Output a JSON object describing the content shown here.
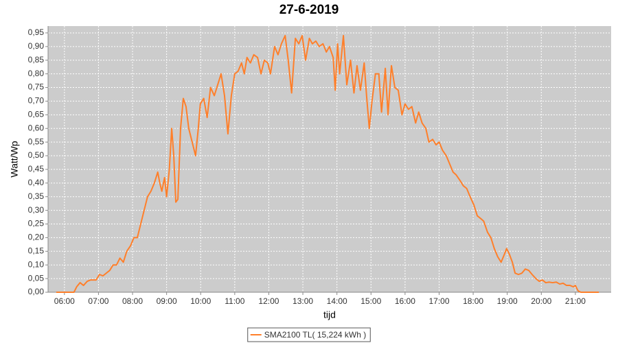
{
  "chart_data": {
    "type": "line",
    "title": "27-6-2019",
    "x_label": "tijd",
    "y_label": "Watt/Wp",
    "grid": true,
    "legend": "bottom",
    "xlim": [
      5.52,
      22.05
    ],
    "ylim": [
      0,
      0.975
    ],
    "xticks": [
      {
        "value": 6,
        "label": "06:00"
      },
      {
        "value": 7,
        "label": "07:00"
      },
      {
        "value": 8,
        "label": "08:00"
      },
      {
        "value": 9,
        "label": "09:00"
      },
      {
        "value": 10,
        "label": "10:00"
      },
      {
        "value": 11,
        "label": "11:00"
      },
      {
        "value": 12,
        "label": "12:00"
      },
      {
        "value": 13,
        "label": "13:00"
      },
      {
        "value": 14,
        "label": "14:00"
      },
      {
        "value": 15,
        "label": "15:00"
      },
      {
        "value": 16,
        "label": "16:00"
      },
      {
        "value": 17,
        "label": "17:00"
      },
      {
        "value": 18,
        "label": "18:00"
      },
      {
        "value": 19,
        "label": "19:00"
      },
      {
        "value": 20,
        "label": "20:00"
      },
      {
        "value": 21,
        "label": "21:00"
      }
    ],
    "yticks": [
      {
        "value": 0,
        "label": "0,00"
      },
      {
        "value": 0.05,
        "label": "0,05"
      },
      {
        "value": 0.1,
        "label": "0,10"
      },
      {
        "value": 0.15,
        "label": "0,15"
      },
      {
        "value": 0.2,
        "label": "0,20"
      },
      {
        "value": 0.25,
        "label": "0,25"
      },
      {
        "value": 0.3,
        "label": "0,30"
      },
      {
        "value": 0.35,
        "label": "0,35"
      },
      {
        "value": 0.4,
        "label": "0,40"
      },
      {
        "value": 0.45,
        "label": "0,45"
      },
      {
        "value": 0.5,
        "label": "0,50"
      },
      {
        "value": 0.55,
        "label": "0,55"
      },
      {
        "value": 0.6,
        "label": "0,60"
      },
      {
        "value": 0.65,
        "label": "0,65"
      },
      {
        "value": 0.7,
        "label": "0,70"
      },
      {
        "value": 0.75,
        "label": "0,75"
      },
      {
        "value": 0.8,
        "label": "0,80"
      },
      {
        "value": 0.85,
        "label": "0,85"
      },
      {
        "value": 0.9,
        "label": "0,90"
      },
      {
        "value": 0.95,
        "label": "0,95"
      }
    ],
    "x": [
      5.76,
      6.28,
      6.36,
      6.46,
      6.56,
      6.67,
      6.77,
      6.93,
      7.03,
      7.13,
      7.23,
      7.33,
      7.43,
      7.53,
      7.63,
      7.73,
      7.83,
      7.94,
      8.04,
      8.14,
      8.24,
      8.34,
      8.44,
      8.54,
      8.64,
      8.74,
      8.8,
      8.86,
      8.94,
      9.0,
      9.08,
      9.15,
      9.21,
      9.27,
      9.33,
      9.41,
      9.49,
      9.57,
      9.65,
      9.75,
      9.85,
      9.93,
      9.99,
      10.09,
      10.19,
      10.29,
      10.4,
      10.5,
      10.6,
      10.7,
      10.8,
      10.9,
      11.0,
      11.1,
      11.2,
      11.28,
      11.36,
      11.46,
      11.56,
      11.67,
      11.77,
      11.87,
      11.97,
      12.05,
      12.17,
      12.27,
      12.37,
      12.48,
      12.57,
      12.67,
      12.78,
      12.88,
      12.98,
      13.08,
      13.19,
      13.28,
      13.38,
      13.48,
      13.59,
      13.69,
      13.78,
      13.89,
      13.95,
      14.02,
      14.08,
      14.19,
      14.29,
      14.4,
      14.5,
      14.59,
      14.69,
      14.8,
      14.87,
      14.95,
      15.03,
      15.13,
      15.23,
      15.31,
      15.42,
      15.5,
      15.6,
      15.7,
      15.8,
      15.91,
      16.0,
      16.1,
      16.2,
      16.31,
      16.4,
      16.5,
      16.61,
      16.7,
      16.81,
      16.91,
      17.0,
      17.1,
      17.21,
      17.31,
      17.41,
      17.5,
      17.61,
      17.71,
      17.81,
      17.91,
      18.02,
      18.12,
      18.22,
      18.31,
      18.42,
      18.52,
      18.62,
      18.72,
      18.82,
      18.92,
      18.98,
      19.06,
      19.15,
      19.23,
      19.33,
      19.43,
      19.53,
      19.63,
      19.73,
      19.84,
      19.94,
      20.03,
      20.13,
      20.23,
      20.33,
      20.44,
      20.54,
      20.64,
      20.74,
      20.84,
      20.94,
      21.0,
      21.08,
      21.16,
      21.69
    ],
    "series": [
      {
        "name": "SMA2100 TL( 15,224 kWh )",
        "color": "#ff7f2a",
        "values": [
          0,
          0,
          0.02,
          0.035,
          0.025,
          0.04,
          0.045,
          0.045,
          0.065,
          0.06,
          0.07,
          0.08,
          0.1,
          0.1,
          0.125,
          0.11,
          0.15,
          0.17,
          0.2,
          0.2,
          0.25,
          0.3,
          0.35,
          0.37,
          0.4,
          0.44,
          0.4,
          0.37,
          0.42,
          0.35,
          0.45,
          0.6,
          0.5,
          0.33,
          0.34,
          0.6,
          0.71,
          0.68,
          0.6,
          0.55,
          0.5,
          0.6,
          0.69,
          0.71,
          0.64,
          0.75,
          0.72,
          0.76,
          0.8,
          0.72,
          0.58,
          0.72,
          0.8,
          0.81,
          0.84,
          0.8,
          0.86,
          0.84,
          0.87,
          0.86,
          0.8,
          0.85,
          0.84,
          0.8,
          0.9,
          0.87,
          0.91,
          0.94,
          0.85,
          0.73,
          0.93,
          0.91,
          0.94,
          0.85,
          0.93,
          0.91,
          0.92,
          0.9,
          0.91,
          0.88,
          0.9,
          0.86,
          0.74,
          0.91,
          0.8,
          0.94,
          0.76,
          0.85,
          0.73,
          0.83,
          0.74,
          0.84,
          0.72,
          0.6,
          0.7,
          0.8,
          0.8,
          0.66,
          0.82,
          0.65,
          0.83,
          0.75,
          0.74,
          0.65,
          0.69,
          0.67,
          0.68,
          0.62,
          0.66,
          0.62,
          0.6,
          0.55,
          0.56,
          0.54,
          0.55,
          0.52,
          0.5,
          0.47,
          0.44,
          0.43,
          0.41,
          0.39,
          0.38,
          0.35,
          0.32,
          0.28,
          0.27,
          0.26,
          0.22,
          0.2,
          0.16,
          0.13,
          0.11,
          0.14,
          0.16,
          0.14,
          0.11,
          0.07,
          0.065,
          0.07,
          0.085,
          0.08,
          0.065,
          0.05,
          0.04,
          0.045,
          0.035,
          0.037,
          0.035,
          0.037,
          0.03,
          0.033,
          0.025,
          0.025,
          0.02,
          0.025,
          0.005,
          0,
          0
        ]
      }
    ]
  }
}
